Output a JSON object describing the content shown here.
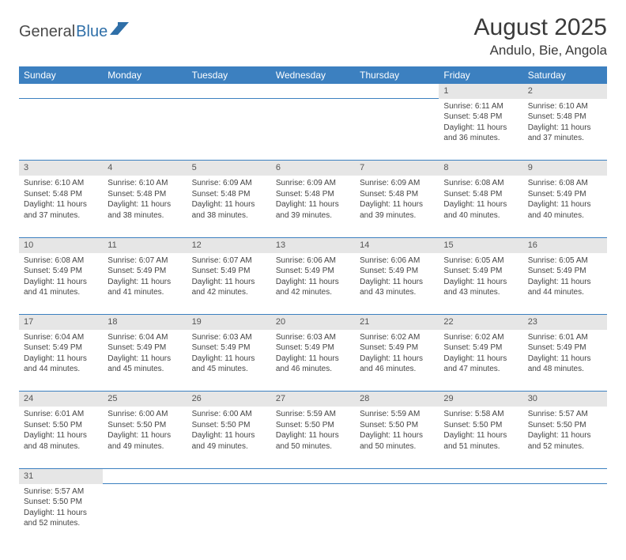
{
  "brand": {
    "general": "General",
    "blue": "Blue"
  },
  "title": "August 2025",
  "location": "Andulo, Bie, Angola",
  "colors": {
    "header_bg": "#3c80c0",
    "header_text": "#ffffff",
    "daynum_bg": "#e6e6e6",
    "row_border": "#3c80c0",
    "text": "#444444"
  },
  "dayHeaders": [
    "Sunday",
    "Monday",
    "Tuesday",
    "Wednesday",
    "Thursday",
    "Friday",
    "Saturday"
  ],
  "weeks": [
    [
      null,
      null,
      null,
      null,
      null,
      {
        "n": "1",
        "sr": "Sunrise: 6:11 AM",
        "ss": "Sunset: 5:48 PM",
        "dl": "Daylight: 11 hours and 36 minutes."
      },
      {
        "n": "2",
        "sr": "Sunrise: 6:10 AM",
        "ss": "Sunset: 5:48 PM",
        "dl": "Daylight: 11 hours and 37 minutes."
      }
    ],
    [
      {
        "n": "3",
        "sr": "Sunrise: 6:10 AM",
        "ss": "Sunset: 5:48 PM",
        "dl": "Daylight: 11 hours and 37 minutes."
      },
      {
        "n": "4",
        "sr": "Sunrise: 6:10 AM",
        "ss": "Sunset: 5:48 PM",
        "dl": "Daylight: 11 hours and 38 minutes."
      },
      {
        "n": "5",
        "sr": "Sunrise: 6:09 AM",
        "ss": "Sunset: 5:48 PM",
        "dl": "Daylight: 11 hours and 38 minutes."
      },
      {
        "n": "6",
        "sr": "Sunrise: 6:09 AM",
        "ss": "Sunset: 5:48 PM",
        "dl": "Daylight: 11 hours and 39 minutes."
      },
      {
        "n": "7",
        "sr": "Sunrise: 6:09 AM",
        "ss": "Sunset: 5:48 PM",
        "dl": "Daylight: 11 hours and 39 minutes."
      },
      {
        "n": "8",
        "sr": "Sunrise: 6:08 AM",
        "ss": "Sunset: 5:48 PM",
        "dl": "Daylight: 11 hours and 40 minutes."
      },
      {
        "n": "9",
        "sr": "Sunrise: 6:08 AM",
        "ss": "Sunset: 5:49 PM",
        "dl": "Daylight: 11 hours and 40 minutes."
      }
    ],
    [
      {
        "n": "10",
        "sr": "Sunrise: 6:08 AM",
        "ss": "Sunset: 5:49 PM",
        "dl": "Daylight: 11 hours and 41 minutes."
      },
      {
        "n": "11",
        "sr": "Sunrise: 6:07 AM",
        "ss": "Sunset: 5:49 PM",
        "dl": "Daylight: 11 hours and 41 minutes."
      },
      {
        "n": "12",
        "sr": "Sunrise: 6:07 AM",
        "ss": "Sunset: 5:49 PM",
        "dl": "Daylight: 11 hours and 42 minutes."
      },
      {
        "n": "13",
        "sr": "Sunrise: 6:06 AM",
        "ss": "Sunset: 5:49 PM",
        "dl": "Daylight: 11 hours and 42 minutes."
      },
      {
        "n": "14",
        "sr": "Sunrise: 6:06 AM",
        "ss": "Sunset: 5:49 PM",
        "dl": "Daylight: 11 hours and 43 minutes."
      },
      {
        "n": "15",
        "sr": "Sunrise: 6:05 AM",
        "ss": "Sunset: 5:49 PM",
        "dl": "Daylight: 11 hours and 43 minutes."
      },
      {
        "n": "16",
        "sr": "Sunrise: 6:05 AM",
        "ss": "Sunset: 5:49 PM",
        "dl": "Daylight: 11 hours and 44 minutes."
      }
    ],
    [
      {
        "n": "17",
        "sr": "Sunrise: 6:04 AM",
        "ss": "Sunset: 5:49 PM",
        "dl": "Daylight: 11 hours and 44 minutes."
      },
      {
        "n": "18",
        "sr": "Sunrise: 6:04 AM",
        "ss": "Sunset: 5:49 PM",
        "dl": "Daylight: 11 hours and 45 minutes."
      },
      {
        "n": "19",
        "sr": "Sunrise: 6:03 AM",
        "ss": "Sunset: 5:49 PM",
        "dl": "Daylight: 11 hours and 45 minutes."
      },
      {
        "n": "20",
        "sr": "Sunrise: 6:03 AM",
        "ss": "Sunset: 5:49 PM",
        "dl": "Daylight: 11 hours and 46 minutes."
      },
      {
        "n": "21",
        "sr": "Sunrise: 6:02 AM",
        "ss": "Sunset: 5:49 PM",
        "dl": "Daylight: 11 hours and 46 minutes."
      },
      {
        "n": "22",
        "sr": "Sunrise: 6:02 AM",
        "ss": "Sunset: 5:49 PM",
        "dl": "Daylight: 11 hours and 47 minutes."
      },
      {
        "n": "23",
        "sr": "Sunrise: 6:01 AM",
        "ss": "Sunset: 5:49 PM",
        "dl": "Daylight: 11 hours and 48 minutes."
      }
    ],
    [
      {
        "n": "24",
        "sr": "Sunrise: 6:01 AM",
        "ss": "Sunset: 5:50 PM",
        "dl": "Daylight: 11 hours and 48 minutes."
      },
      {
        "n": "25",
        "sr": "Sunrise: 6:00 AM",
        "ss": "Sunset: 5:50 PM",
        "dl": "Daylight: 11 hours and 49 minutes."
      },
      {
        "n": "26",
        "sr": "Sunrise: 6:00 AM",
        "ss": "Sunset: 5:50 PM",
        "dl": "Daylight: 11 hours and 49 minutes."
      },
      {
        "n": "27",
        "sr": "Sunrise: 5:59 AM",
        "ss": "Sunset: 5:50 PM",
        "dl": "Daylight: 11 hours and 50 minutes."
      },
      {
        "n": "28",
        "sr": "Sunrise: 5:59 AM",
        "ss": "Sunset: 5:50 PM",
        "dl": "Daylight: 11 hours and 50 minutes."
      },
      {
        "n": "29",
        "sr": "Sunrise: 5:58 AM",
        "ss": "Sunset: 5:50 PM",
        "dl": "Daylight: 11 hours and 51 minutes."
      },
      {
        "n": "30",
        "sr": "Sunrise: 5:57 AM",
        "ss": "Sunset: 5:50 PM",
        "dl": "Daylight: 11 hours and 52 minutes."
      }
    ],
    [
      {
        "n": "31",
        "sr": "Sunrise: 5:57 AM",
        "ss": "Sunset: 5:50 PM",
        "dl": "Daylight: 11 hours and 52 minutes."
      },
      null,
      null,
      null,
      null,
      null,
      null
    ]
  ]
}
